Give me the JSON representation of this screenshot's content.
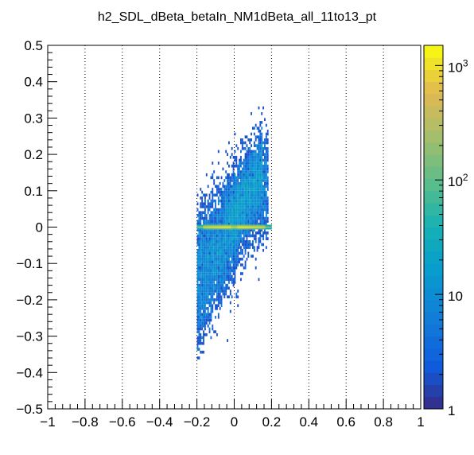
{
  "chart_data": {
    "type": "heatmap",
    "title": "h2_SDL_dBeta_betaIn_NM1dBeta_all_11to13_pt",
    "xlabel": "",
    "ylabel": "",
    "xlim": [
      -1,
      1
    ],
    "ylim": [
      -0.5,
      0.5
    ],
    "x_ticks": [
      -1,
      -0.8,
      -0.6,
      -0.4,
      -0.2,
      0,
      0.2,
      0.4,
      0.6,
      0.8,
      1
    ],
    "x_tick_labels": [
      "−1",
      "−0.8",
      "−0.6",
      "−0.4",
      "−0.2",
      "0",
      "0.2",
      "0.4",
      "0.6",
      "0.8",
      "1"
    ],
    "y_ticks": [
      -0.5,
      -0.4,
      -0.3,
      -0.2,
      -0.1,
      0,
      0.1,
      0.2,
      0.3,
      0.4,
      0.5
    ],
    "y_tick_labels": [
      "−0.5",
      "−0.4",
      "−0.3",
      "−0.2",
      "−0.1",
      "0",
      "0.1",
      "0.2",
      "0.3",
      "0.4",
      "0.5"
    ],
    "x_grid": true,
    "y_grid": false,
    "colorbar": {
      "scale": "log",
      "range": [
        1,
        1500
      ],
      "tick_values": [
        1,
        10,
        100,
        1000
      ],
      "tick_labels": [
        {
          "base": "1",
          "exp": ""
        },
        {
          "base": "10",
          "exp": ""
        },
        {
          "base": "10",
          "exp": "2"
        },
        {
          "base": "10",
          "exp": "3"
        }
      ]
    },
    "features": [
      {
        "name": "core-band",
        "x_range": [
          -0.2,
          0.2
        ],
        "y_center": 0.0,
        "half_width": 0.006,
        "peak_count": 1500
      },
      {
        "name": "upper-lobe",
        "x_range": [
          -0.05,
          0.18
        ],
        "y_range": [
          0.0,
          0.34
        ],
        "trend": "positive"
      },
      {
        "name": "lower-lobe",
        "x_range": [
          -0.2,
          0.0
        ],
        "y_range": [
          -0.37,
          0.0
        ],
        "trend": "positive"
      }
    ]
  }
}
